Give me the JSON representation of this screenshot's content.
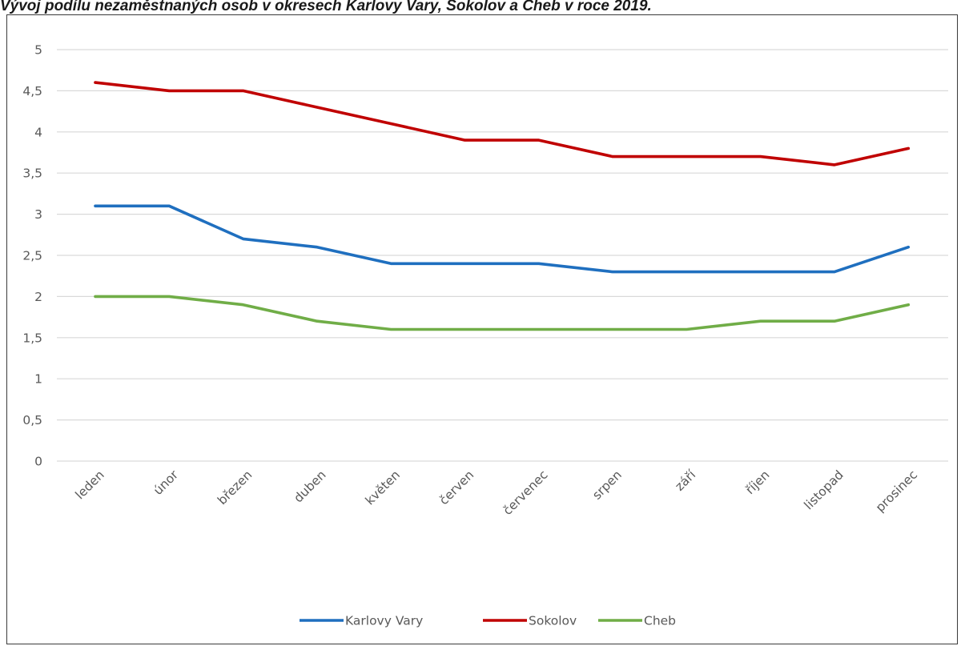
{
  "caption": "Vývoj podílu nezaměstnaných osob v okresech Karlovy Vary, Sokolov a Cheb v roce 2019.",
  "chart_data": {
    "type": "line",
    "categories": [
      "leden",
      "únor",
      "březen",
      "duben",
      "květen",
      "červen",
      "červenec",
      "srpen",
      "září",
      "říjen",
      "listopad",
      "prosinec"
    ],
    "series": [
      {
        "name": "Karlovy Vary",
        "color": "#1f6fbf",
        "values": [
          3.1,
          3.1,
          2.7,
          2.6,
          2.4,
          2.4,
          2.4,
          2.3,
          2.3,
          2.3,
          2.3,
          2.6
        ]
      },
      {
        "name": "Sokolov",
        "color": "#c00000",
        "values": [
          4.6,
          4.5,
          4.5,
          4.3,
          4.1,
          3.9,
          3.9,
          3.7,
          3.7,
          3.7,
          3.6,
          3.8
        ]
      },
      {
        "name": "Cheb",
        "color": "#70ad47",
        "values": [
          2.0,
          2.0,
          1.9,
          1.7,
          1.6,
          1.6,
          1.6,
          1.6,
          1.6,
          1.7,
          1.7,
          1.9
        ]
      }
    ],
    "y_ticks": [
      "0",
      "0,5",
      "1",
      "1,5",
      "2",
      "2,5",
      "3",
      "3,5",
      "4",
      "4,5",
      "5"
    ],
    "ylim": [
      0,
      5
    ],
    "grid": true,
    "legend_position": "bottom"
  }
}
